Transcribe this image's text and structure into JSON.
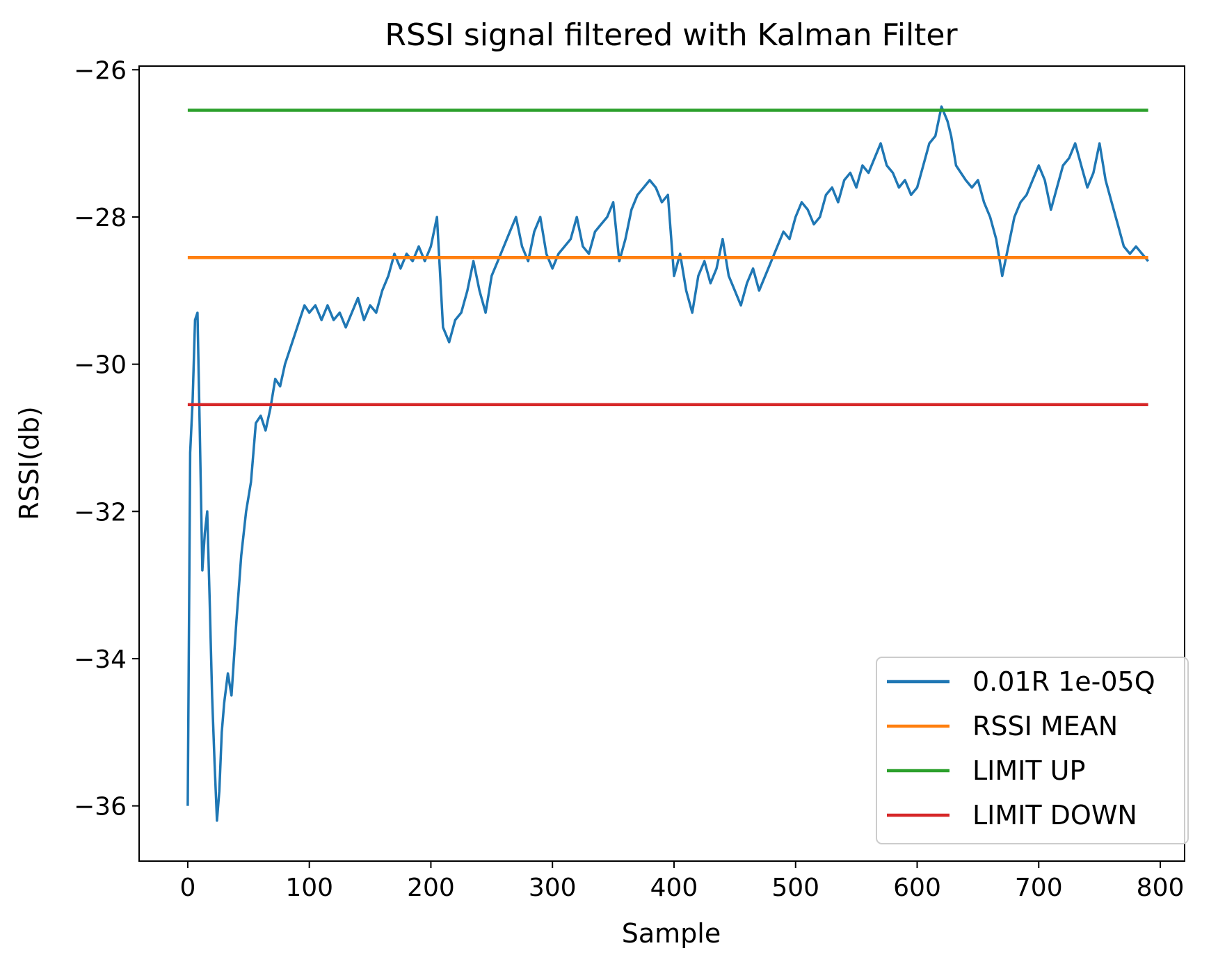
{
  "chart_data": {
    "type": "line",
    "title": "RSSI signal filtered with Kalman Filter",
    "xlabel": "Sample",
    "ylabel": "RSSI(db)",
    "xlim": [
      -40,
      820
    ],
    "ylim": [
      -36.75,
      -25.95
    ],
    "xticks": [
      0,
      100,
      200,
      300,
      400,
      500,
      600,
      700,
      800
    ],
    "yticks": [
      -36,
      -34,
      -32,
      -30,
      -28,
      -26
    ],
    "xtick_labels": [
      "0",
      "100",
      "200",
      "300",
      "400",
      "500",
      "600",
      "700",
      "800"
    ],
    "ytick_labels": [
      "−36",
      "−34",
      "−32",
      "−30",
      "−28",
      "−26"
    ],
    "grid": false,
    "legend_position": "lower-right",
    "series": [
      {
        "name": "0.01R 1e-05Q",
        "color": "#1f77b4",
        "x": [
          0,
          2,
          4,
          6,
          8,
          10,
          12,
          14,
          16,
          18,
          20,
          22,
          24,
          26,
          28,
          30,
          33,
          36,
          40,
          44,
          48,
          52,
          56,
          60,
          64,
          68,
          72,
          76,
          80,
          84,
          88,
          92,
          96,
          100,
          105,
          110,
          115,
          120,
          125,
          130,
          135,
          140,
          145,
          150,
          155,
          160,
          165,
          170,
          175,
          180,
          185,
          190,
          195,
          200,
          205,
          210,
          215,
          220,
          225,
          230,
          235,
          240,
          245,
          250,
          255,
          260,
          265,
          270,
          275,
          280,
          285,
          290,
          295,
          300,
          305,
          310,
          315,
          320,
          325,
          330,
          335,
          340,
          345,
          350,
          355,
          360,
          365,
          370,
          375,
          380,
          385,
          390,
          395,
          400,
          405,
          410,
          415,
          420,
          425,
          430,
          435,
          440,
          445,
          450,
          455,
          460,
          465,
          470,
          475,
          480,
          485,
          490,
          495,
          500,
          505,
          510,
          515,
          520,
          525,
          530,
          535,
          540,
          545,
          550,
          555,
          560,
          565,
          570,
          575,
          580,
          585,
          590,
          595,
          600,
          605,
          610,
          615,
          620,
          625,
          628,
          632,
          636,
          640,
          645,
          650,
          655,
          660,
          665,
          670,
          675,
          680,
          685,
          690,
          695,
          700,
          705,
          710,
          715,
          720,
          725,
          730,
          735,
          740,
          745,
          750,
          755,
          760,
          765,
          770,
          775,
          780,
          785,
          790
        ],
        "values": [
          -36.0,
          -31.2,
          -30.5,
          -29.4,
          -29.3,
          -31.0,
          -32.8,
          -32.3,
          -32.0,
          -33.2,
          -34.5,
          -35.4,
          -36.2,
          -35.8,
          -35.0,
          -34.6,
          -34.2,
          -34.5,
          -33.5,
          -32.6,
          -32.0,
          -31.6,
          -30.8,
          -30.7,
          -30.9,
          -30.6,
          -30.2,
          -30.3,
          -30.0,
          -29.8,
          -29.6,
          -29.4,
          -29.2,
          -29.3,
          -29.2,
          -29.4,
          -29.2,
          -29.4,
          -29.3,
          -29.5,
          -29.3,
          -29.1,
          -29.4,
          -29.2,
          -29.3,
          -29.0,
          -28.8,
          -28.5,
          -28.7,
          -28.5,
          -28.6,
          -28.4,
          -28.6,
          -28.4,
          -28.0,
          -29.5,
          -29.7,
          -29.4,
          -29.3,
          -29.0,
          -28.6,
          -29.0,
          -29.3,
          -28.8,
          -28.6,
          -28.4,
          -28.2,
          -28.0,
          -28.4,
          -28.6,
          -28.2,
          -28.0,
          -28.5,
          -28.7,
          -28.5,
          -28.4,
          -28.3,
          -28.0,
          -28.4,
          -28.5,
          -28.2,
          -28.1,
          -28.0,
          -27.8,
          -28.6,
          -28.3,
          -27.9,
          -27.7,
          -27.6,
          -27.5,
          -27.6,
          -27.8,
          -27.7,
          -28.8,
          -28.5,
          -29.0,
          -29.3,
          -28.8,
          -28.6,
          -28.9,
          -28.7,
          -28.3,
          -28.8,
          -29.0,
          -29.2,
          -28.9,
          -28.7,
          -29.0,
          -28.8,
          -28.6,
          -28.4,
          -28.2,
          -28.3,
          -28.0,
          -27.8,
          -27.9,
          -28.1,
          -28.0,
          -27.7,
          -27.6,
          -27.8,
          -27.5,
          -27.4,
          -27.6,
          -27.3,
          -27.4,
          -27.2,
          -27.0,
          -27.3,
          -27.4,
          -27.6,
          -27.5,
          -27.7,
          -27.6,
          -27.3,
          -27.0,
          -26.9,
          -26.5,
          -26.7,
          -26.9,
          -27.3,
          -27.4,
          -27.5,
          -27.6,
          -27.5,
          -27.8,
          -28.0,
          -28.3,
          -28.8,
          -28.4,
          -28.0,
          -27.8,
          -27.7,
          -27.5,
          -27.3,
          -27.5,
          -27.9,
          -27.6,
          -27.3,
          -27.2,
          -27.0,
          -27.3,
          -27.6,
          -27.4,
          -27.0,
          -27.5,
          -27.8,
          -28.1,
          -28.4,
          -28.5,
          -28.4,
          -28.5,
          -28.6
        ]
      },
      {
        "name": "RSSI MEAN",
        "color": "#ff7f0e",
        "x": [
          0,
          790
        ],
        "values": [
          -28.55,
          -28.55
        ]
      },
      {
        "name": "LIMIT UP",
        "color": "#2ca02c",
        "x": [
          0,
          790
        ],
        "values": [
          -26.55,
          -26.55
        ]
      },
      {
        "name": "LIMIT DOWN",
        "color": "#d62728",
        "x": [
          0,
          790
        ],
        "values": [
          -30.55,
          -30.55
        ]
      }
    ]
  }
}
